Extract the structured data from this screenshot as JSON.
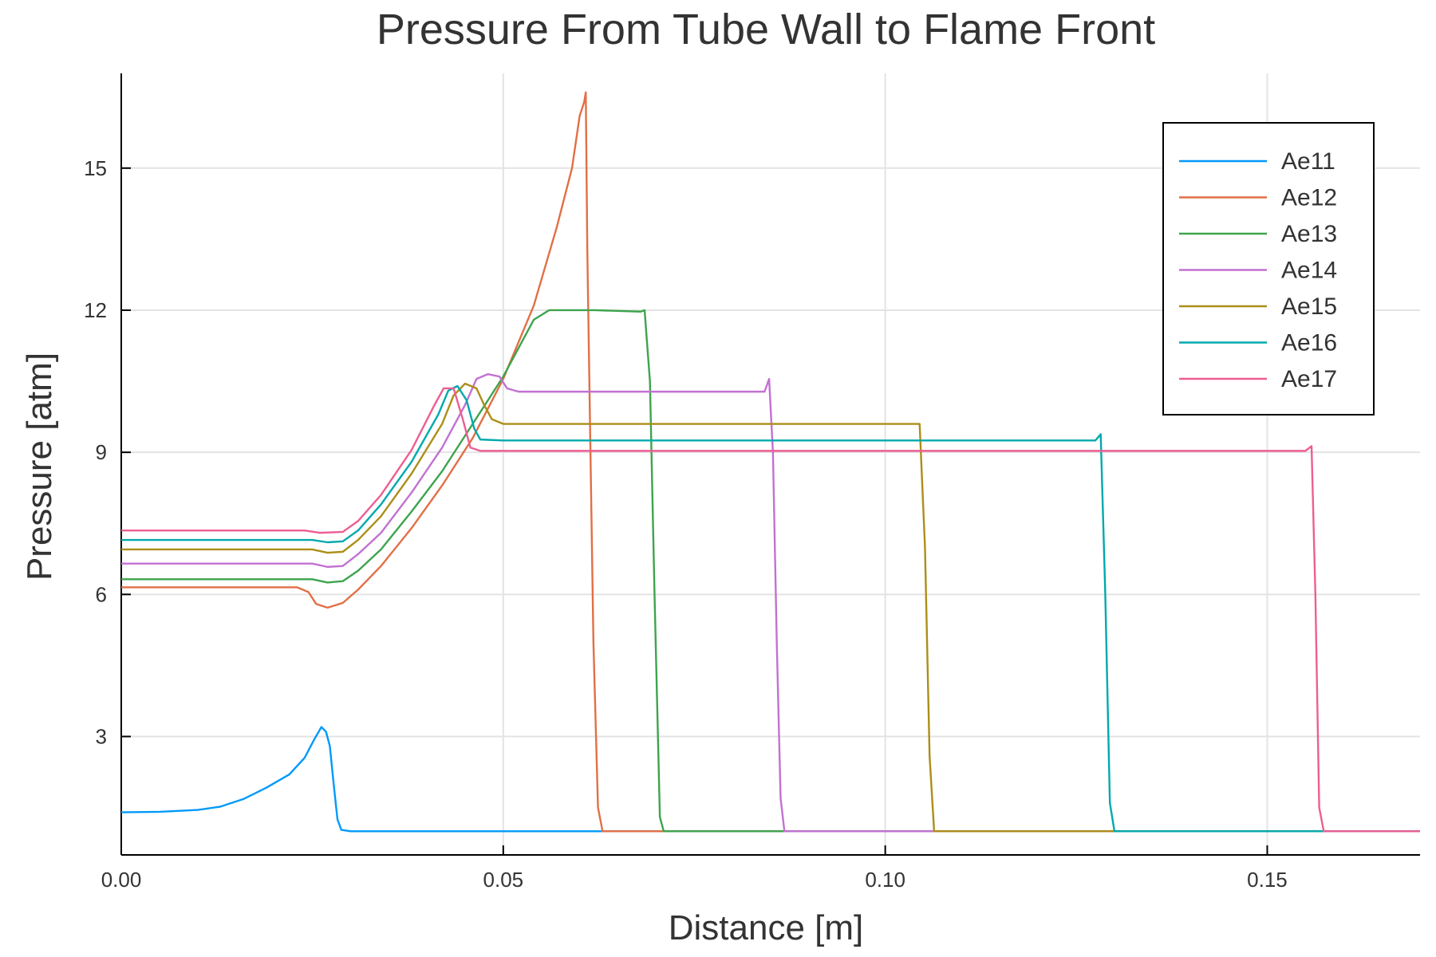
{
  "chart_data": {
    "type": "line",
    "title": "Pressure From Tube Wall to Flame Front",
    "xlabel": "Distance [m]",
    "ylabel": "Pressure [atm]",
    "xlim": [
      0,
      0.17
    ],
    "ylim": [
      0.5,
      17.0
    ],
    "xticks": [
      0.0,
      0.05,
      0.1,
      0.15
    ],
    "xtick_labels": [
      "0.00",
      "0.05",
      "0.10",
      "0.15"
    ],
    "yticks": [
      3,
      6,
      9,
      12,
      15
    ],
    "ytick_labels": [
      "3",
      "6",
      "9",
      "12",
      "15"
    ],
    "grid": true,
    "legend_position": "top-right",
    "series": [
      {
        "name": "Ae11",
        "color": "#009af9",
        "points": [
          [
            0.0,
            1.4
          ],
          [
            0.005,
            1.41
          ],
          [
            0.01,
            1.45
          ],
          [
            0.013,
            1.52
          ],
          [
            0.016,
            1.68
          ],
          [
            0.019,
            1.92
          ],
          [
            0.022,
            2.2
          ],
          [
            0.024,
            2.55
          ],
          [
            0.0253,
            2.95
          ],
          [
            0.0262,
            3.2
          ],
          [
            0.0268,
            3.1
          ],
          [
            0.0273,
            2.8
          ],
          [
            0.0278,
            2.0
          ],
          [
            0.0283,
            1.25
          ],
          [
            0.0288,
            1.03
          ],
          [
            0.03,
            1.0
          ],
          [
            0.17,
            1.0
          ]
        ]
      },
      {
        "name": "Ae12",
        "color": "#e26f46",
        "points": [
          [
            0.0,
            6.15
          ],
          [
            0.02,
            6.15
          ],
          [
            0.023,
            6.15
          ],
          [
            0.0245,
            6.05
          ],
          [
            0.0255,
            5.8
          ],
          [
            0.027,
            5.72
          ],
          [
            0.029,
            5.82
          ],
          [
            0.031,
            6.1
          ],
          [
            0.034,
            6.6
          ],
          [
            0.038,
            7.4
          ],
          [
            0.042,
            8.3
          ],
          [
            0.046,
            9.3
          ],
          [
            0.05,
            10.55
          ],
          [
            0.054,
            12.1
          ],
          [
            0.057,
            13.75
          ],
          [
            0.059,
            15.0
          ],
          [
            0.06,
            16.1
          ],
          [
            0.0606,
            16.4
          ],
          [
            0.0608,
            16.6
          ],
          [
            0.061,
            13.3
          ],
          [
            0.0618,
            5.0
          ],
          [
            0.0624,
            1.5
          ],
          [
            0.063,
            1.0
          ],
          [
            0.17,
            1.0
          ]
        ]
      },
      {
        "name": "Ae13",
        "color": "#3da44d",
        "points": [
          [
            0.0,
            6.32
          ],
          [
            0.025,
            6.32
          ],
          [
            0.027,
            6.25
          ],
          [
            0.029,
            6.28
          ],
          [
            0.031,
            6.5
          ],
          [
            0.034,
            6.95
          ],
          [
            0.038,
            7.75
          ],
          [
            0.042,
            8.6
          ],
          [
            0.046,
            9.6
          ],
          [
            0.05,
            10.6
          ],
          [
            0.052,
            11.2
          ],
          [
            0.054,
            11.8
          ],
          [
            0.056,
            12.0
          ],
          [
            0.062,
            12.0
          ],
          [
            0.068,
            11.97
          ],
          [
            0.0685,
            12.0
          ],
          [
            0.0692,
            10.5
          ],
          [
            0.0698,
            6.0
          ],
          [
            0.0705,
            1.3
          ],
          [
            0.071,
            1.0
          ],
          [
            0.17,
            1.0
          ]
        ]
      },
      {
        "name": "Ae14",
        "color": "#c271d2",
        "points": [
          [
            0.0,
            6.65
          ],
          [
            0.025,
            6.65
          ],
          [
            0.027,
            6.58
          ],
          [
            0.029,
            6.6
          ],
          [
            0.031,
            6.85
          ],
          [
            0.034,
            7.3
          ],
          [
            0.038,
            8.15
          ],
          [
            0.042,
            9.1
          ],
          [
            0.045,
            10.0
          ],
          [
            0.0465,
            10.55
          ],
          [
            0.048,
            10.65
          ],
          [
            0.0495,
            10.6
          ],
          [
            0.0505,
            10.35
          ],
          [
            0.052,
            10.28
          ],
          [
            0.07,
            10.28
          ],
          [
            0.0842,
            10.28
          ],
          [
            0.0848,
            10.55
          ],
          [
            0.0853,
            9.0
          ],
          [
            0.0858,
            5.0
          ],
          [
            0.0863,
            1.7
          ],
          [
            0.0868,
            1.0
          ],
          [
            0.17,
            1.0
          ]
        ]
      },
      {
        "name": "Ae15",
        "color": "#ac8e18",
        "points": [
          [
            0.0,
            6.95
          ],
          [
            0.025,
            6.95
          ],
          [
            0.027,
            6.88
          ],
          [
            0.029,
            6.9
          ],
          [
            0.031,
            7.15
          ],
          [
            0.034,
            7.65
          ],
          [
            0.038,
            8.55
          ],
          [
            0.042,
            9.6
          ],
          [
            0.0435,
            10.2
          ],
          [
            0.045,
            10.45
          ],
          [
            0.0465,
            10.35
          ],
          [
            0.0475,
            10.0
          ],
          [
            0.0485,
            9.7
          ],
          [
            0.05,
            9.6
          ],
          [
            0.07,
            9.6
          ],
          [
            0.1045,
            9.6
          ],
          [
            0.1052,
            7.0
          ],
          [
            0.1058,
            2.6
          ],
          [
            0.1064,
            1.0
          ],
          [
            0.17,
            1.0
          ]
        ]
      },
      {
        "name": "Ae16",
        "color": "#00a9ad",
        "points": [
          [
            0.0,
            7.15
          ],
          [
            0.025,
            7.15
          ],
          [
            0.027,
            7.1
          ],
          [
            0.029,
            7.12
          ],
          [
            0.031,
            7.35
          ],
          [
            0.034,
            7.9
          ],
          [
            0.038,
            8.8
          ],
          [
            0.0415,
            9.8
          ],
          [
            0.0428,
            10.3
          ],
          [
            0.044,
            10.4
          ],
          [
            0.0452,
            10.1
          ],
          [
            0.0462,
            9.5
          ],
          [
            0.047,
            9.27
          ],
          [
            0.05,
            9.25
          ],
          [
            0.09,
            9.25
          ],
          [
            0.1275,
            9.25
          ],
          [
            0.1282,
            9.38
          ],
          [
            0.1288,
            6.0
          ],
          [
            0.1294,
            1.6
          ],
          [
            0.13,
            1.0
          ],
          [
            0.17,
            1.0
          ]
        ]
      },
      {
        "name": "Ae17",
        "color": "#ed5e93",
        "points": [
          [
            0.0,
            7.35
          ],
          [
            0.024,
            7.35
          ],
          [
            0.026,
            7.3
          ],
          [
            0.029,
            7.32
          ],
          [
            0.031,
            7.55
          ],
          [
            0.034,
            8.1
          ],
          [
            0.038,
            9.05
          ],
          [
            0.041,
            10.0
          ],
          [
            0.0422,
            10.35
          ],
          [
            0.0435,
            10.35
          ],
          [
            0.0447,
            9.7
          ],
          [
            0.0457,
            9.1
          ],
          [
            0.047,
            9.03
          ],
          [
            0.05,
            9.03
          ],
          [
            0.1,
            9.03
          ],
          [
            0.155,
            9.03
          ],
          [
            0.1558,
            9.13
          ],
          [
            0.1563,
            6.0
          ],
          [
            0.1568,
            1.5
          ],
          [
            0.1574,
            1.0
          ],
          [
            0.17,
            1.0
          ]
        ]
      }
    ]
  }
}
